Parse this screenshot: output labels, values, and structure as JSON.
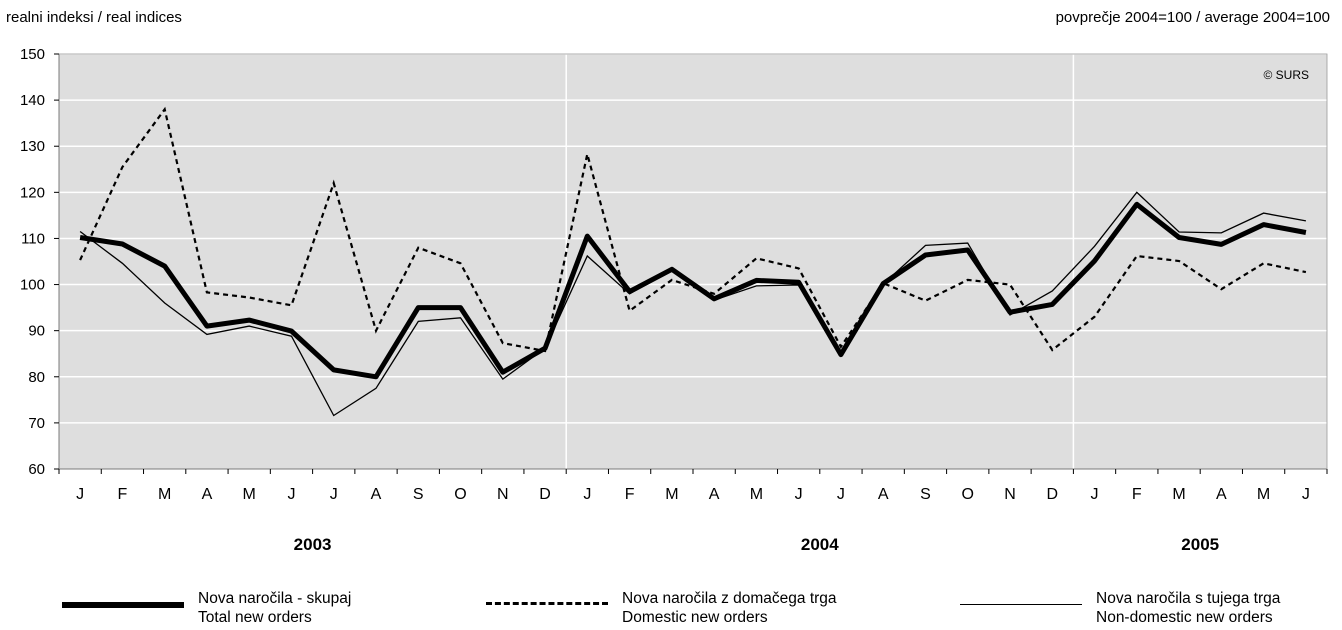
{
  "header": {
    "left": "realni indeksi / real indices",
    "right": "povprečje 2004=100 / average 2004=100"
  },
  "chart_data": {
    "type": "line",
    "credit": "© SURS",
    "y_ticks": [
      "150",
      "140",
      "130",
      "120",
      "110",
      "100",
      "90",
      "80",
      "70",
      "60"
    ],
    "ylim": [
      60,
      150
    ],
    "grid": true,
    "x_categories": [
      "J",
      "F",
      "M",
      "A",
      "M",
      "J",
      "J",
      "A",
      "S",
      "O",
      "N",
      "D",
      "J",
      "F",
      "M",
      "A",
      "M",
      "J",
      "J",
      "A",
      "S",
      "O",
      "N",
      "D",
      "J",
      "F",
      "M",
      "A",
      "M",
      "J"
    ],
    "years": [
      {
        "label": "2003",
        "start_index": 0,
        "end_index": 11
      },
      {
        "label": "2004",
        "start_index": 12,
        "end_index": 23
      },
      {
        "label": "2005",
        "start_index": 24,
        "end_index": 29
      }
    ],
    "series": [
      {
        "name": "Nova naročila - skupaj / Total new orders",
        "style": "thick",
        "color": "#000000",
        "values": [
          110.2,
          108.8,
          104.0,
          91.0,
          92.3,
          89.9,
          81.5,
          80.0,
          95.0,
          95.0,
          81.0,
          86.2,
          110.5,
          98.5,
          103.3,
          96.9,
          100.9,
          100.5,
          84.8,
          100.2,
          106.4,
          107.5,
          94.0,
          95.7,
          105.1,
          117.4,
          110.2,
          108.7,
          113.0,
          111.3
        ]
      },
      {
        "name": "Nova naročila z domačega trga / Domestic new orders",
        "style": "dashed",
        "color": "#000000",
        "values": [
          105.3,
          125.5,
          138.0,
          98.3,
          97.2,
          95.5,
          122.0,
          90.0,
          108.0,
          104.6,
          87.3,
          85.6,
          128.3,
          94.3,
          101.0,
          98.0,
          105.7,
          103.5,
          86.5,
          100.3,
          96.5,
          101.0,
          100.0,
          85.8,
          93.0,
          106.2,
          105.1,
          99.0,
          104.6,
          102.7
        ]
      },
      {
        "name": "Nova naročila s tujega trga / Non-domestic new orders",
        "style": "thin",
        "color": "#000000",
        "values": [
          111.5,
          104.6,
          96.0,
          89.2,
          91.0,
          88.8,
          71.6,
          77.5,
          92.0,
          92.8,
          79.5,
          86.2,
          106.2,
          98.0,
          103.0,
          96.6,
          99.7,
          99.9,
          84.5,
          100.1,
          108.5,
          109.0,
          93.4,
          98.6,
          108.3,
          120.0,
          111.4,
          111.2,
          115.5,
          113.8
        ]
      }
    ]
  },
  "legend": [
    {
      "line1": "Nova naročila - skupaj",
      "line2": "Total new orders"
    },
    {
      "line1": "Nova naročila z domačega trga",
      "line2": "Domestic new orders"
    },
    {
      "line1": "Nova naročila s tujega trga",
      "line2": "Non-domestic new orders"
    }
  ]
}
